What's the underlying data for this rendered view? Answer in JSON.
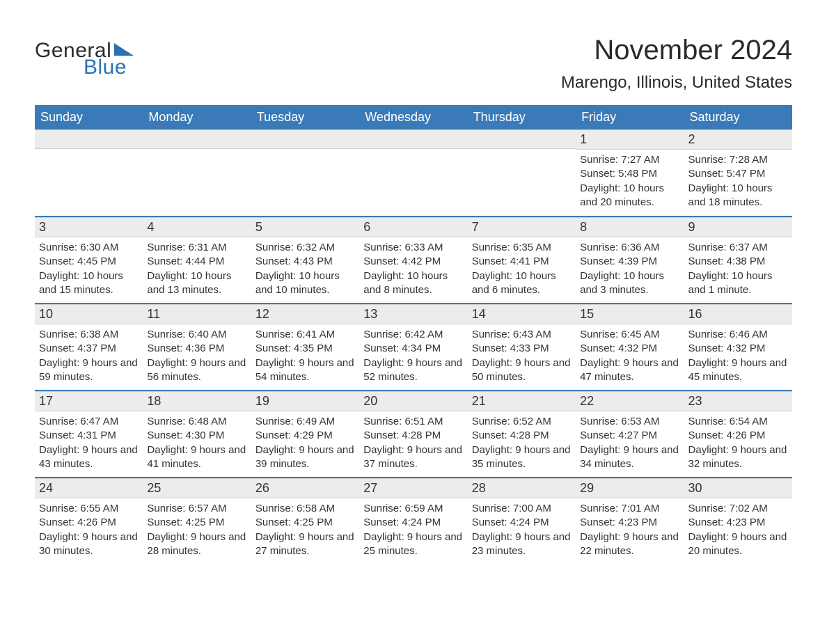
{
  "brand": {
    "word1": "General",
    "word2": "Blue",
    "color1": "#2a2a2a",
    "color2": "#2a72b5"
  },
  "title": "November 2024",
  "location": "Marengo, Illinois, United States",
  "theme": {
    "header_bg": "#3a7ab8",
    "header_text": "#ffffff",
    "row_divider": "#3a7ab8",
    "daynum_bg": "#ececec",
    "body_text": "#333333",
    "page_bg": "#ffffff"
  },
  "weekday_headers": [
    "Sunday",
    "Monday",
    "Tuesday",
    "Wednesday",
    "Thursday",
    "Friday",
    "Saturday"
  ],
  "weeks": [
    [
      null,
      null,
      null,
      null,
      null,
      {
        "n": "1",
        "sunrise": "Sunrise: 7:27 AM",
        "sunset": "Sunset: 5:48 PM",
        "daylight": "Daylight: 10 hours and 20 minutes."
      },
      {
        "n": "2",
        "sunrise": "Sunrise: 7:28 AM",
        "sunset": "Sunset: 5:47 PM",
        "daylight": "Daylight: 10 hours and 18 minutes."
      }
    ],
    [
      {
        "n": "3",
        "sunrise": "Sunrise: 6:30 AM",
        "sunset": "Sunset: 4:45 PM",
        "daylight": "Daylight: 10 hours and 15 minutes."
      },
      {
        "n": "4",
        "sunrise": "Sunrise: 6:31 AM",
        "sunset": "Sunset: 4:44 PM",
        "daylight": "Daylight: 10 hours and 13 minutes."
      },
      {
        "n": "5",
        "sunrise": "Sunrise: 6:32 AM",
        "sunset": "Sunset: 4:43 PM",
        "daylight": "Daylight: 10 hours and 10 minutes."
      },
      {
        "n": "6",
        "sunrise": "Sunrise: 6:33 AM",
        "sunset": "Sunset: 4:42 PM",
        "daylight": "Daylight: 10 hours and 8 minutes."
      },
      {
        "n": "7",
        "sunrise": "Sunrise: 6:35 AM",
        "sunset": "Sunset: 4:41 PM",
        "daylight": "Daylight: 10 hours and 6 minutes."
      },
      {
        "n": "8",
        "sunrise": "Sunrise: 6:36 AM",
        "sunset": "Sunset: 4:39 PM",
        "daylight": "Daylight: 10 hours and 3 minutes."
      },
      {
        "n": "9",
        "sunrise": "Sunrise: 6:37 AM",
        "sunset": "Sunset: 4:38 PM",
        "daylight": "Daylight: 10 hours and 1 minute."
      }
    ],
    [
      {
        "n": "10",
        "sunrise": "Sunrise: 6:38 AM",
        "sunset": "Sunset: 4:37 PM",
        "daylight": "Daylight: 9 hours and 59 minutes."
      },
      {
        "n": "11",
        "sunrise": "Sunrise: 6:40 AM",
        "sunset": "Sunset: 4:36 PM",
        "daylight": "Daylight: 9 hours and 56 minutes."
      },
      {
        "n": "12",
        "sunrise": "Sunrise: 6:41 AM",
        "sunset": "Sunset: 4:35 PM",
        "daylight": "Daylight: 9 hours and 54 minutes."
      },
      {
        "n": "13",
        "sunrise": "Sunrise: 6:42 AM",
        "sunset": "Sunset: 4:34 PM",
        "daylight": "Daylight: 9 hours and 52 minutes."
      },
      {
        "n": "14",
        "sunrise": "Sunrise: 6:43 AM",
        "sunset": "Sunset: 4:33 PM",
        "daylight": "Daylight: 9 hours and 50 minutes."
      },
      {
        "n": "15",
        "sunrise": "Sunrise: 6:45 AM",
        "sunset": "Sunset: 4:32 PM",
        "daylight": "Daylight: 9 hours and 47 minutes."
      },
      {
        "n": "16",
        "sunrise": "Sunrise: 6:46 AM",
        "sunset": "Sunset: 4:32 PM",
        "daylight": "Daylight: 9 hours and 45 minutes."
      }
    ],
    [
      {
        "n": "17",
        "sunrise": "Sunrise: 6:47 AM",
        "sunset": "Sunset: 4:31 PM",
        "daylight": "Daylight: 9 hours and 43 minutes."
      },
      {
        "n": "18",
        "sunrise": "Sunrise: 6:48 AM",
        "sunset": "Sunset: 4:30 PM",
        "daylight": "Daylight: 9 hours and 41 minutes."
      },
      {
        "n": "19",
        "sunrise": "Sunrise: 6:49 AM",
        "sunset": "Sunset: 4:29 PM",
        "daylight": "Daylight: 9 hours and 39 minutes."
      },
      {
        "n": "20",
        "sunrise": "Sunrise: 6:51 AM",
        "sunset": "Sunset: 4:28 PM",
        "daylight": "Daylight: 9 hours and 37 minutes."
      },
      {
        "n": "21",
        "sunrise": "Sunrise: 6:52 AM",
        "sunset": "Sunset: 4:28 PM",
        "daylight": "Daylight: 9 hours and 35 minutes."
      },
      {
        "n": "22",
        "sunrise": "Sunrise: 6:53 AM",
        "sunset": "Sunset: 4:27 PM",
        "daylight": "Daylight: 9 hours and 34 minutes."
      },
      {
        "n": "23",
        "sunrise": "Sunrise: 6:54 AM",
        "sunset": "Sunset: 4:26 PM",
        "daylight": "Daylight: 9 hours and 32 minutes."
      }
    ],
    [
      {
        "n": "24",
        "sunrise": "Sunrise: 6:55 AM",
        "sunset": "Sunset: 4:26 PM",
        "daylight": "Daylight: 9 hours and 30 minutes."
      },
      {
        "n": "25",
        "sunrise": "Sunrise: 6:57 AM",
        "sunset": "Sunset: 4:25 PM",
        "daylight": "Daylight: 9 hours and 28 minutes."
      },
      {
        "n": "26",
        "sunrise": "Sunrise: 6:58 AM",
        "sunset": "Sunset: 4:25 PM",
        "daylight": "Daylight: 9 hours and 27 minutes."
      },
      {
        "n": "27",
        "sunrise": "Sunrise: 6:59 AM",
        "sunset": "Sunset: 4:24 PM",
        "daylight": "Daylight: 9 hours and 25 minutes."
      },
      {
        "n": "28",
        "sunrise": "Sunrise: 7:00 AM",
        "sunset": "Sunset: 4:24 PM",
        "daylight": "Daylight: 9 hours and 23 minutes."
      },
      {
        "n": "29",
        "sunrise": "Sunrise: 7:01 AM",
        "sunset": "Sunset: 4:23 PM",
        "daylight": "Daylight: 9 hours and 22 minutes."
      },
      {
        "n": "30",
        "sunrise": "Sunrise: 7:02 AM",
        "sunset": "Sunset: 4:23 PM",
        "daylight": "Daylight: 9 hours and 20 minutes."
      }
    ]
  ]
}
